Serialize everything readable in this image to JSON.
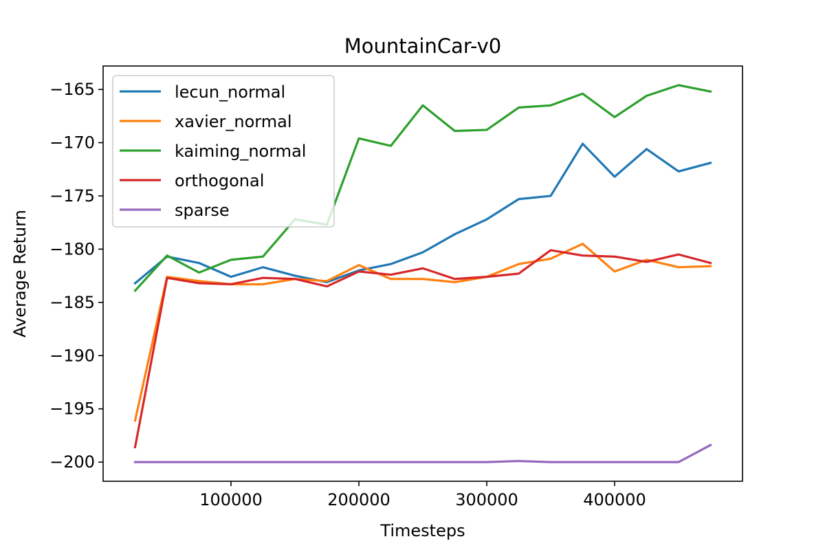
{
  "chart_data": {
    "type": "line",
    "title": "MountainCar-v0",
    "xlabel": "Timesteps",
    "ylabel": "Average Return",
    "xlim": [
      0,
      500000
    ],
    "ylim": [
      -201.8,
      -162.8
    ],
    "x_ticks": [
      100000,
      200000,
      300000,
      400000
    ],
    "x_tick_labels": [
      "100000",
      "200000",
      "300000",
      "400000"
    ],
    "y_ticks": [
      -200,
      -195,
      -190,
      -185,
      -180,
      -175,
      -170,
      -165
    ],
    "y_tick_labels": [
      "−200",
      "−195",
      "−190",
      "−185",
      "−180",
      "−175",
      "−170",
      "−165"
    ],
    "grid": false,
    "legend_position": "upper-left",
    "x": [
      25000,
      50000,
      75000,
      100000,
      125000,
      150000,
      175000,
      200000,
      225000,
      250000,
      275000,
      300000,
      325000,
      350000,
      375000,
      400000,
      425000,
      450000,
      475000
    ],
    "series": [
      {
        "name": "lecun_normal",
        "color": "#1f77b4",
        "values": [
          -183.2,
          -180.7,
          -181.3,
          -182.6,
          -181.7,
          -182.5,
          -183.1,
          -182.0,
          -181.4,
          -180.3,
          -178.6,
          -177.2,
          -175.3,
          -175.0,
          -170.1,
          -173.2,
          -170.6,
          -172.7,
          -171.9
        ]
      },
      {
        "name": "xavier_normal",
        "color": "#ff7f0e",
        "values": [
          -196.1,
          -182.6,
          -183.0,
          -183.3,
          -183.3,
          -182.8,
          -183.0,
          -181.5,
          -182.8,
          -182.8,
          -183.1,
          -182.6,
          -181.4,
          -180.9,
          -179.5,
          -182.1,
          -181.0,
          -181.7,
          -181.6
        ]
      },
      {
        "name": "kaiming_normal",
        "color": "#2ca02c",
        "values": [
          -183.9,
          -180.6,
          -182.2,
          -181.0,
          -180.7,
          -177.2,
          -177.7,
          -169.6,
          -170.3,
          -166.5,
          -168.9,
          -168.8,
          -166.7,
          -166.5,
          -165.4,
          -167.6,
          -165.6,
          -164.6,
          -165.2
        ]
      },
      {
        "name": "orthogonal",
        "color": "#d62728",
        "values": [
          -198.6,
          -182.7,
          -183.2,
          -183.3,
          -182.7,
          -182.8,
          -183.5,
          -182.1,
          -182.4,
          -181.8,
          -182.8,
          -182.6,
          -182.3,
          -180.1,
          -180.6,
          -180.7,
          -181.2,
          -180.5,
          -181.3
        ]
      },
      {
        "name": "sparse",
        "color": "#9467bd",
        "values": [
          -200.0,
          -200.0,
          -200.0,
          -200.0,
          -200.0,
          -200.0,
          -200.0,
          -200.0,
          -200.0,
          -200.0,
          -200.0,
          -200.0,
          -199.9,
          -200.0,
          -200.0,
          -200.0,
          -200.0,
          -200.0,
          -198.4
        ]
      }
    ]
  }
}
